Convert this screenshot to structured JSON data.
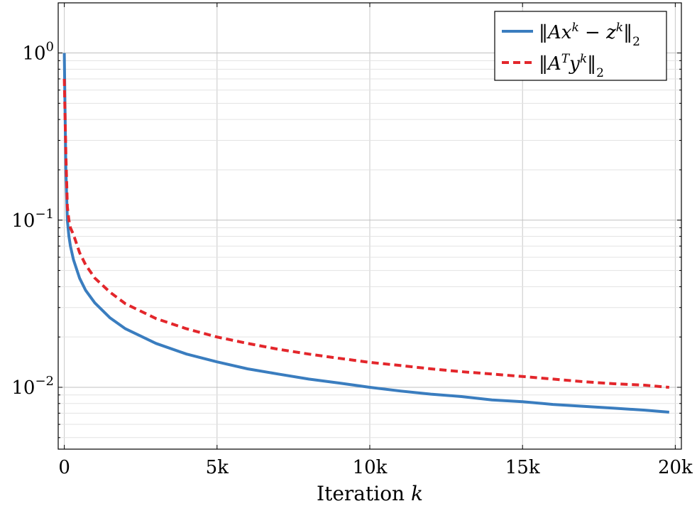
{
  "chart_data": {
    "type": "line",
    "title": "",
    "xlabel_text": "Iteration",
    "xlabel_var": "k",
    "ylabel": "",
    "xlim": [
      -200,
      20200
    ],
    "ylim_log10": [
      -2.37,
      0.3
    ],
    "yscale": "log",
    "grid": true,
    "legend_position": "top-right",
    "x_ticks": [
      {
        "value": 0,
        "label": "0"
      },
      {
        "value": 5000,
        "label": "5k"
      },
      {
        "value": 10000,
        "label": "10k"
      },
      {
        "value": 15000,
        "label": "15k"
      },
      {
        "value": 20000,
        "label": "20k"
      }
    ],
    "y_ticks": [
      {
        "exp": 0,
        "base": "10",
        "power": "0"
      },
      {
        "exp": -1,
        "base": "10",
        "power": "−1"
      },
      {
        "exp": -2,
        "base": "10",
        "power": "−2"
      }
    ],
    "series": [
      {
        "name_parts": [
          "‖Ax",
          "k",
          " − z",
          "k",
          "‖",
          "2"
        ],
        "color": "#3a7dbf",
        "dash": "solid",
        "x": [
          0,
          20,
          50,
          100,
          150,
          200,
          300,
          500,
          700,
          1000,
          1500,
          2000,
          3000,
          4000,
          5000,
          6000,
          7000,
          8000,
          9000,
          10000,
          11000,
          12000,
          13000,
          14000,
          15000,
          16000,
          17000,
          18000,
          19000,
          19800
        ],
        "y": [
          1.0,
          0.5,
          0.2,
          0.1,
          0.08,
          0.07,
          0.058,
          0.045,
          0.038,
          0.032,
          0.026,
          0.0224,
          0.0183,
          0.0158,
          0.0142,
          0.0129,
          0.012,
          0.0112,
          0.0106,
          0.01,
          0.0095,
          0.0091,
          0.0088,
          0.0084,
          0.0082,
          0.0079,
          0.0077,
          0.0075,
          0.0073,
          0.0071
        ]
      },
      {
        "name_parts": [
          "‖A",
          "T",
          "y",
          "k",
          "‖",
          "2"
        ],
        "color": "#e3262b",
        "dash": "dashed",
        "x": [
          0,
          20,
          50,
          100,
          150,
          200,
          300,
          500,
          700,
          1000,
          1500,
          2000,
          3000,
          4000,
          5000,
          6000,
          7000,
          8000,
          9000,
          10000,
          11000,
          12000,
          13000,
          14000,
          15000,
          16000,
          17000,
          18000,
          19000,
          19800
        ],
        "y": [
          0.7,
          0.45,
          0.25,
          0.12,
          0.1,
          0.09,
          0.082,
          0.064,
          0.054,
          0.045,
          0.037,
          0.0316,
          0.0258,
          0.0224,
          0.02,
          0.0183,
          0.0169,
          0.0158,
          0.0149,
          0.0141,
          0.0135,
          0.0129,
          0.0124,
          0.012,
          0.0116,
          0.0112,
          0.0108,
          0.0105,
          0.0103,
          0.01
        ]
      }
    ]
  }
}
